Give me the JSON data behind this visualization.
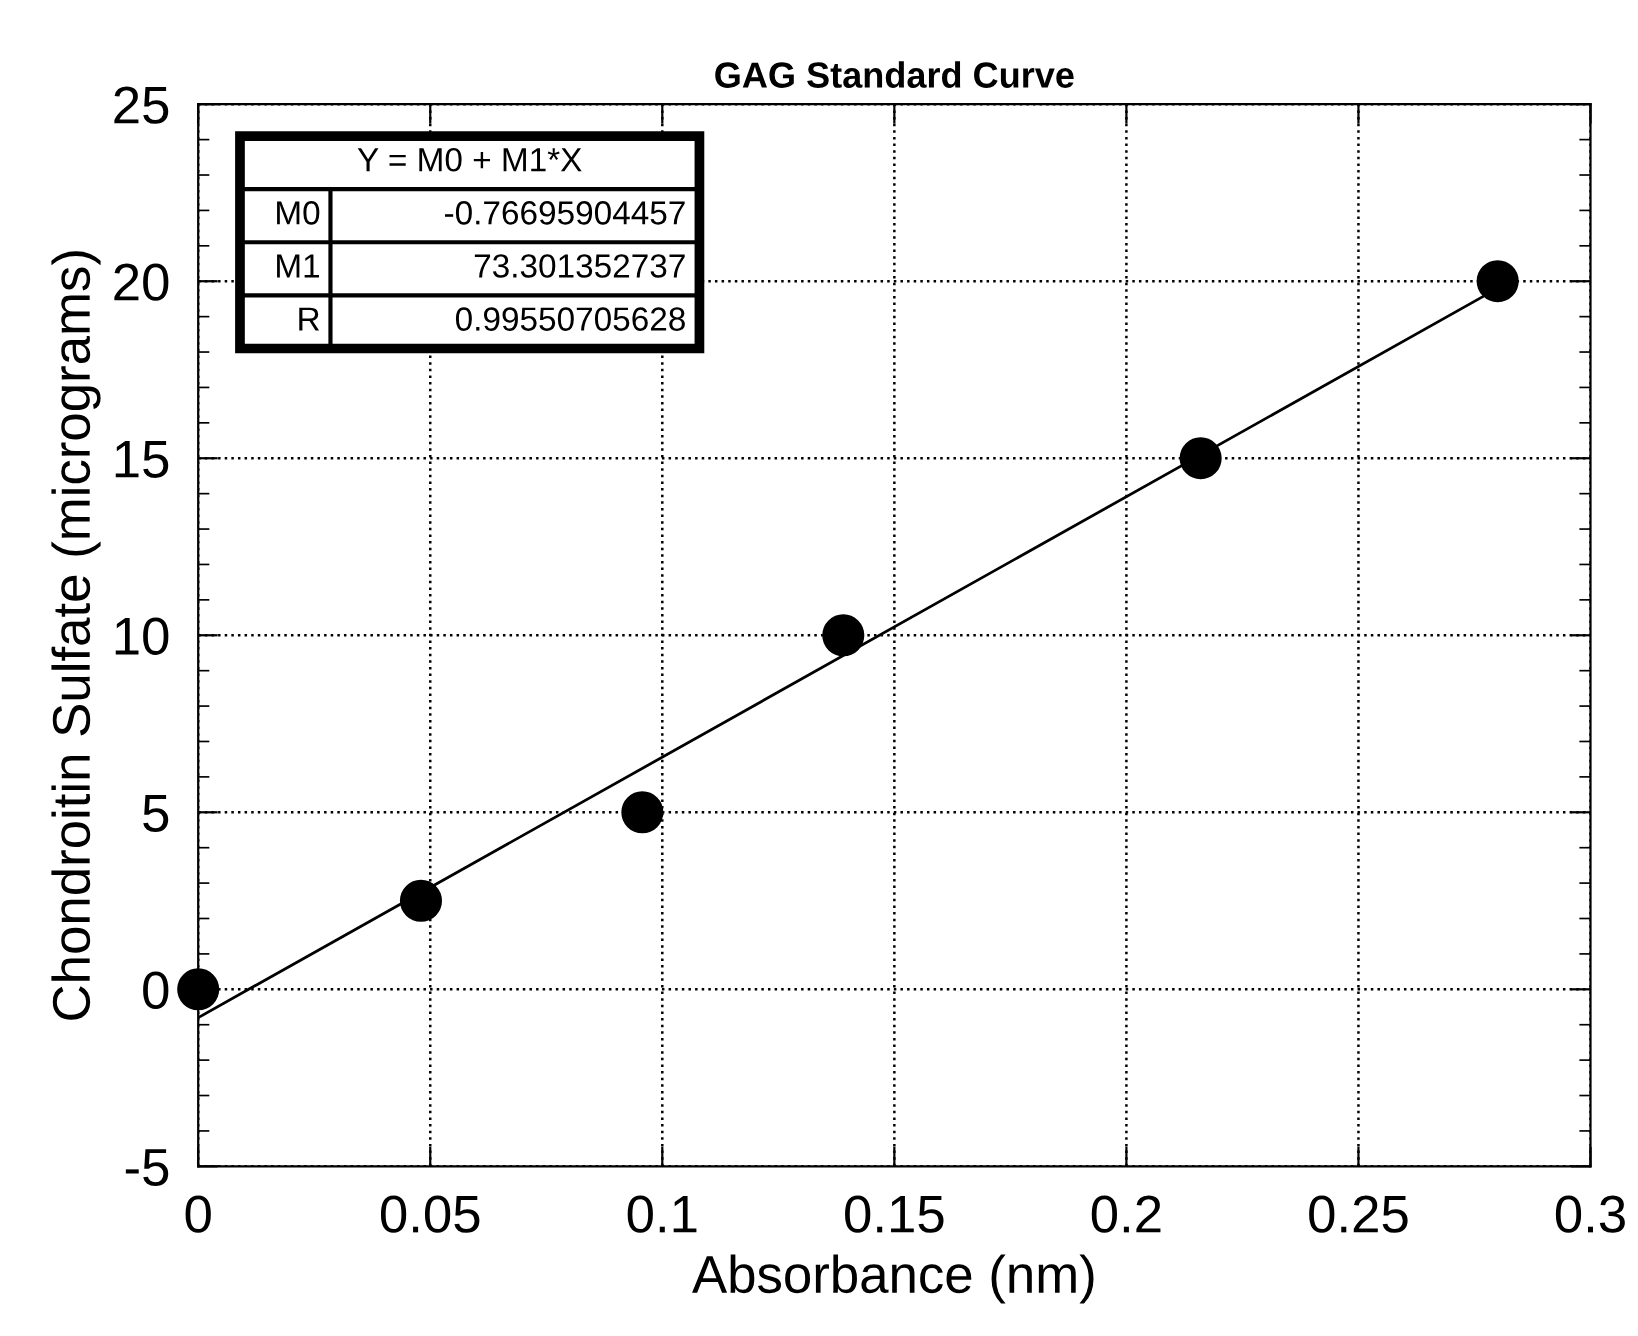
{
  "chart_data": {
    "type": "scatter",
    "title": "GAG Standard Curve",
    "xlabel": "Absorbance (nm)",
    "ylabel": "Chondroitin Sulfate (micrograms)",
    "x": [
      0,
      0.048,
      0.0957,
      0.139,
      0.216,
      0.28
    ],
    "series": [
      {
        "color": "#000000",
        "values": [
          0,
          2.5,
          5,
          10,
          15,
          20
        ]
      },
      {
        "type": "line",
        "marker": "none",
        "color": "#000000",
        "x": [
          0,
          0.28
        ],
        "values": [
          -0.8,
          19.8
        ]
      }
    ],
    "marker": "circle",
    "xlim": [
      0,
      0.3
    ],
    "ylim": [
      -5,
      25
    ],
    "xticks": [
      0,
      0.05,
      0.1,
      0.15,
      0.2,
      0.25,
      0.3
    ],
    "yticks": [
      -5,
      0,
      5,
      10,
      15,
      20,
      25
    ],
    "grid": true,
    "line_style": "solid",
    "annotations": [
      "Y = M0 + M1*X",
      "M0",
      "-0.76695904457",
      "M1",
      "73.301352737",
      "R",
      "0.99550705628"
    ]
  }
}
